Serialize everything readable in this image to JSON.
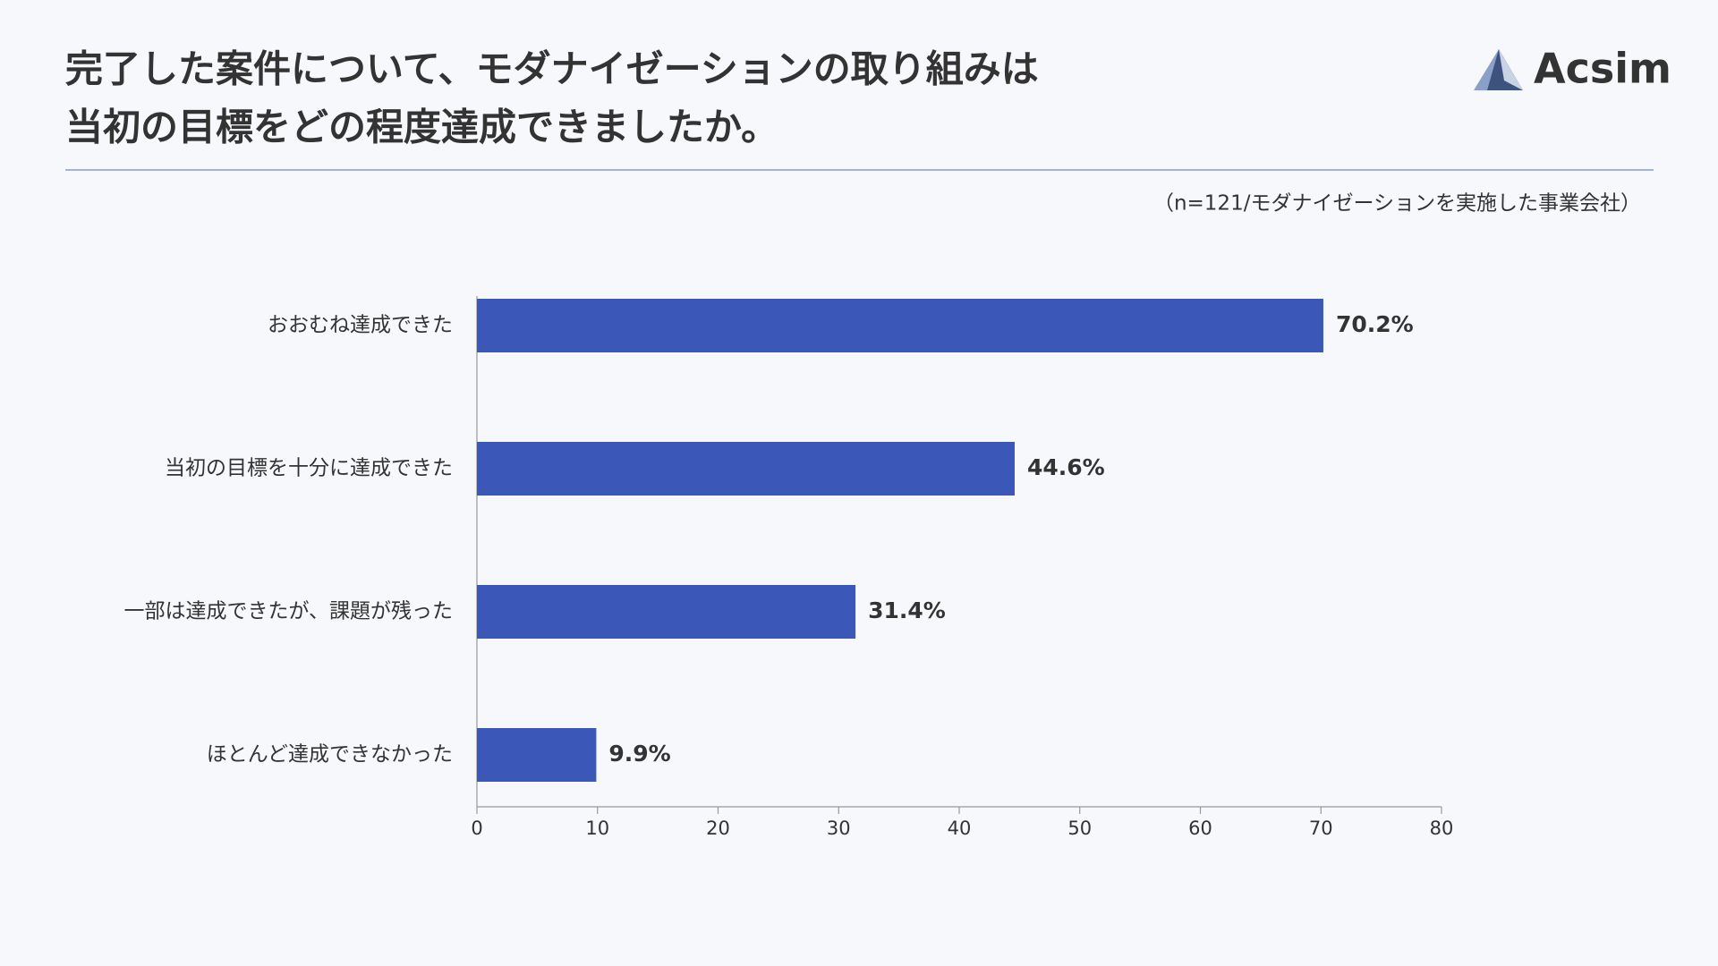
{
  "chart_data": {
    "type": "bar",
    "orientation": "horizontal",
    "title": [
      "完了した案件について、モダナイゼーションの取り組みは",
      "当初の目標をどの程度達成できましたか。"
    ],
    "subtitle": "（n=121/モダナイゼーションを実施した事業会社）",
    "brand": "Acsim",
    "categories": [
      "おおむね達成できた",
      "当初の目標を十分に達成できた",
      "一部は達成できたが、課題が残った",
      "ほとんど達成できなかった"
    ],
    "values": [
      70.2,
      44.6,
      31.4,
      9.9
    ],
    "value_labels": [
      "70.2%",
      "44.6%",
      "31.4%",
      "9.9%"
    ],
    "color": "#3b58b8",
    "xlim": [
      0,
      80
    ],
    "xticks": [
      0,
      10,
      20,
      30,
      40,
      50,
      60,
      70,
      80
    ],
    "grid": false
  }
}
